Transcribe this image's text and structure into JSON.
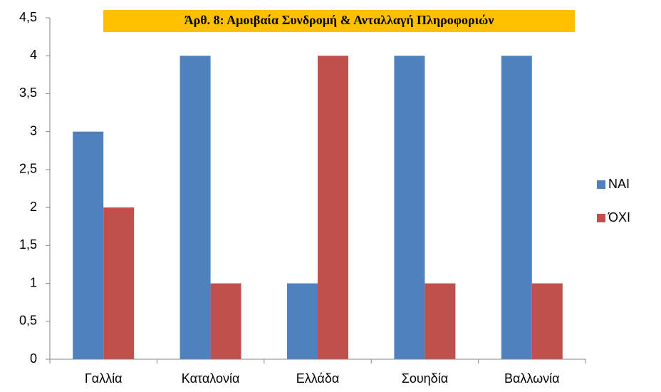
{
  "chart_data": {
    "type": "bar",
    "title": "Άρθ. 8: Αμοιβαία Συνδρομή & Ανταλλαγή Πληροφοριών",
    "categories": [
      "Γαλλία",
      "Καταλονία",
      "Ελλάδα",
      "Σουηδία",
      "Βαλλωνία"
    ],
    "series": [
      {
        "name": "ΝΑΙ",
        "color": "#4f81bd",
        "values": [
          3,
          4,
          1,
          4,
          4
        ]
      },
      {
        "name": "ΌΧΙ",
        "color": "#c0504d",
        "values": [
          2,
          1,
          4,
          1,
          1
        ]
      }
    ],
    "ylim": [
      0,
      4.5
    ],
    "yticks": [
      0,
      {
        "value": 0.5,
        "label": "0,5"
      },
      1,
      {
        "value": 1.5,
        "label": "1,5"
      },
      2,
      {
        "value": 2.5,
        "label": "2,5"
      },
      3,
      {
        "value": 3.5,
        "label": "3,5"
      },
      4,
      {
        "value": 4.5,
        "label": "4,5"
      }
    ],
    "legend": "right",
    "title_background": "#ffc000"
  }
}
